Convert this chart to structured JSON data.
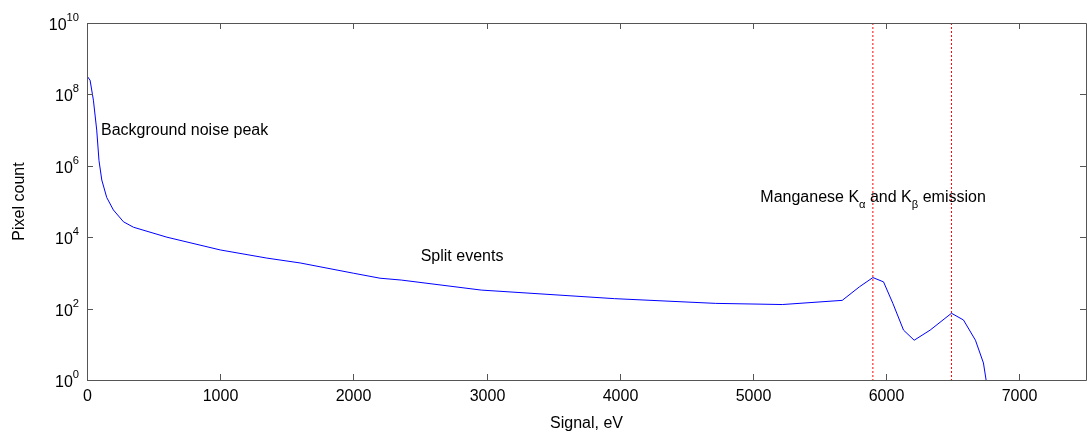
{
  "chart_data": {
    "type": "line",
    "xlabel": "Signal, eV",
    "ylabel": "Pixel count",
    "log": "y",
    "legend": false,
    "marker": "none",
    "xlim": [
      0,
      7500
    ],
    "xticks": [
      0,
      1000,
      2000,
      3000,
      4000,
      5000,
      6000,
      7000
    ],
    "ylim": [
      1,
      10000000000
    ],
    "yticks": [
      {
        "value": 1,
        "label": "10$^{0}$"
      },
      {
        "value": 100,
        "label": "10$^{2}$"
      },
      {
        "value": 10000,
        "label": "10$^{4}$"
      },
      {
        "value": 1000000,
        "label": "10$^{6}$"
      },
      {
        "value": 100000000,
        "label": "10$^{8}$"
      },
      {
        "value": 10000000000,
        "label": "10$^{10}$"
      }
    ],
    "x": [
      2,
      23,
      48,
      73,
      90,
      111,
      148,
      198,
      274,
      349,
      600,
      1000,
      1350,
      1600,
      2000,
      2200,
      2360,
      2960,
      3960,
      4720,
      5220,
      5670,
      5800,
      5900,
      5980,
      6050,
      6130,
      6210,
      6330,
      6490,
      6580,
      6670,
      6730,
      6750
    ],
    "series": [
      {
        "color": "#0000ff",
        "values": [
          320000000,
          250000000,
          69000000,
          10000000,
          1400000,
          400000,
          130000,
          58000,
          27000,
          19000,
          10000,
          4400,
          2600,
          1900,
          980,
          710,
          630,
          330,
          190,
          140,
          130,
          170,
          410,
          740,
          560,
          140,
          25,
          13,
          25,
          74,
          48,
          13,
          3,
          1
        ]
      }
    ],
    "ref_lines": [
      {
        "axis": "x",
        "value": 5900,
        "color": "#ff0000",
        "line_style": "dotted"
      },
      {
        "axis": "x",
        "value": 6490,
        "color": "#ff0000",
        "line_style": "dotted"
      }
    ],
    "annotations": [
      "Background noise peak",
      "Split events",
      "Manganese K$_{α}$ and K$_{β}$ emission"
    ]
  }
}
